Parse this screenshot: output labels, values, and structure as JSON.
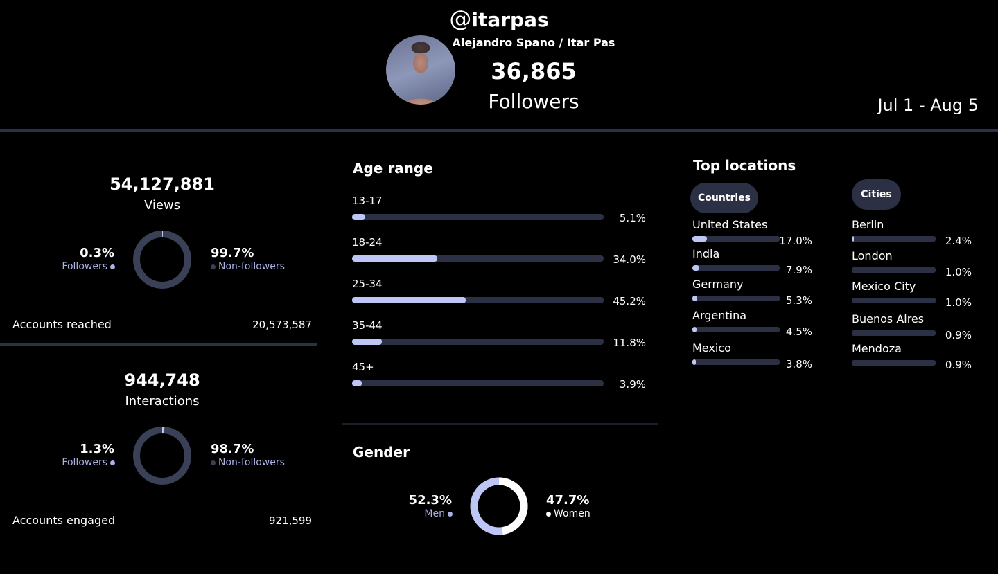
{
  "header": {
    "at_symbol": "@",
    "handle": "itarpas",
    "full_name": "Alejandro Spano / Itar Pas",
    "followers_count": "36,865",
    "followers_label": "Followers",
    "date_range": "Jul 1 - Aug 5"
  },
  "views": {
    "total": "54,127,881",
    "label": "Views",
    "followers_pct": "0.3%",
    "followers_label": "Followers",
    "nonfollowers_pct": "99.7%",
    "nonfollowers_label": "Non-followers",
    "followers_share": 0.003,
    "reach_label": "Accounts reached",
    "reach_value": "20,573,587"
  },
  "interactions": {
    "total": "944,748",
    "label": "Interactions",
    "followers_pct": "1.3%",
    "followers_label": "Followers",
    "nonfollowers_pct": "98.7%",
    "nonfollowers_label": "Non-followers",
    "followers_share": 0.013,
    "engaged_label": "Accounts engaged",
    "engaged_value": "921,599"
  },
  "age": {
    "title": "Age range",
    "ranges": [
      {
        "label": "13-17",
        "pct": "5.1%",
        "value": 5.1
      },
      {
        "label": "18-24",
        "pct": "34.0%",
        "value": 34.0
      },
      {
        "label": "25-34",
        "pct": "45.2%",
        "value": 45.2
      },
      {
        "label": "35-44",
        "pct": "11.8%",
        "value": 11.8
      },
      {
        "label": "45+",
        "pct": "3.9%",
        "value": 3.9
      }
    ]
  },
  "gender": {
    "title": "Gender",
    "men_pct": "52.3%",
    "men_label": "Men",
    "men_value": 52.3,
    "women_pct": "47.7%",
    "women_label": "Women",
    "women_value": 47.7
  },
  "locations": {
    "title": "Top locations",
    "countries_tab": "Countries",
    "cities_tab": "Cities",
    "countries": [
      {
        "name": "United States",
        "pct": "17.0%",
        "value": 17.0
      },
      {
        "name": "India",
        "pct": "7.9%",
        "value": 7.9
      },
      {
        "name": "Germany",
        "pct": "5.3%",
        "value": 5.3
      },
      {
        "name": "Argentina",
        "pct": "4.5%",
        "value": 4.5
      },
      {
        "name": "Mexico",
        "pct": "3.8%",
        "value": 3.8
      }
    ],
    "cities": [
      {
        "name": "Berlin",
        "pct": "2.4%",
        "value": 2.4
      },
      {
        "name": "London",
        "pct": "1.0%",
        "value": 1.0
      },
      {
        "name": "Mexico City",
        "pct": "1.0%",
        "value": 1.0
      },
      {
        "name": "Buenos Aires",
        "pct": "0.9%",
        "value": 0.9
      },
      {
        "name": "Mendoza",
        "pct": "0.9%",
        "value": 0.9
      }
    ]
  },
  "colors": {
    "accent": "#bec6f6",
    "track": "#2b3044",
    "ring": "#3a4056",
    "women": "#ffffff",
    "background": "#000000"
  }
}
